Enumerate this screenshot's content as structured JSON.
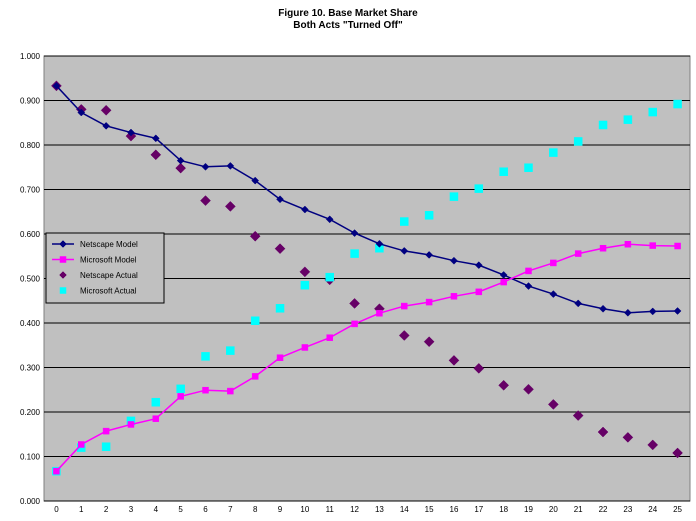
{
  "chart_data": {
    "type": "line",
    "title": "Figure 10. Base Market Share",
    "subtitle": "Both Acts \"Turned Off\"",
    "x": [
      0,
      1,
      2,
      3,
      4,
      5,
      6,
      7,
      8,
      9,
      10,
      11,
      12,
      13,
      14,
      15,
      16,
      17,
      18,
      19,
      20,
      21,
      22,
      23,
      24,
      25
    ],
    "xlim": [
      0,
      25
    ],
    "ylim": [
      0.0,
      1.0
    ],
    "y_ticks": [
      "0.000",
      "0.100",
      "0.200",
      "0.300",
      "0.400",
      "0.500",
      "0.600",
      "0.700",
      "0.800",
      "0.900",
      "1.000"
    ],
    "grid": true,
    "plot_background": "#c0c0c0",
    "legend_position": "left-middle",
    "series": [
      {
        "name": "Netscape Model",
        "style": "line-marker",
        "marker": "diamond",
        "color": "#000080",
        "values": [
          0.933,
          0.873,
          0.843,
          0.828,
          0.815,
          0.765,
          0.751,
          0.753,
          0.72,
          0.678,
          0.655,
          0.633,
          0.602,
          0.578,
          0.562,
          0.553,
          0.54,
          0.53,
          0.508,
          0.483,
          0.465,
          0.444,
          0.432,
          0.423,
          0.426,
          0.427
        ]
      },
      {
        "name": "Microsoft Model",
        "style": "line-marker",
        "marker": "square",
        "color": "#ff00ff",
        "values": [
          0.067,
          0.127,
          0.157,
          0.172,
          0.185,
          0.235,
          0.249,
          0.247,
          0.28,
          0.322,
          0.345,
          0.367,
          0.398,
          0.422,
          0.438,
          0.447,
          0.46,
          0.47,
          0.492,
          0.517,
          0.535,
          0.556,
          0.568,
          0.577,
          0.574,
          0.573
        ]
      },
      {
        "name": "Netscape Actual",
        "style": "marker",
        "marker": "diamond",
        "color": "#660066",
        "values": [
          0.933,
          0.88,
          0.878,
          0.82,
          0.778,
          0.748,
          0.675,
          0.662,
          0.595,
          0.567,
          0.515,
          0.497,
          0.444,
          0.432,
          0.372,
          0.358,
          0.316,
          0.298,
          0.26,
          0.251,
          0.217,
          0.192,
          0.155,
          0.143,
          0.126,
          0.108
        ]
      },
      {
        "name": "Microsoft Actual",
        "style": "marker",
        "marker": "square",
        "color": "#00ffff",
        "values": [
          0.067,
          0.12,
          0.122,
          0.18,
          0.222,
          0.252,
          0.325,
          0.338,
          0.405,
          0.433,
          0.485,
          0.503,
          0.556,
          0.568,
          0.628,
          0.642,
          0.684,
          0.702,
          0.74,
          0.749,
          0.783,
          0.808,
          0.845,
          0.857,
          0.874,
          0.892
        ]
      }
    ]
  }
}
